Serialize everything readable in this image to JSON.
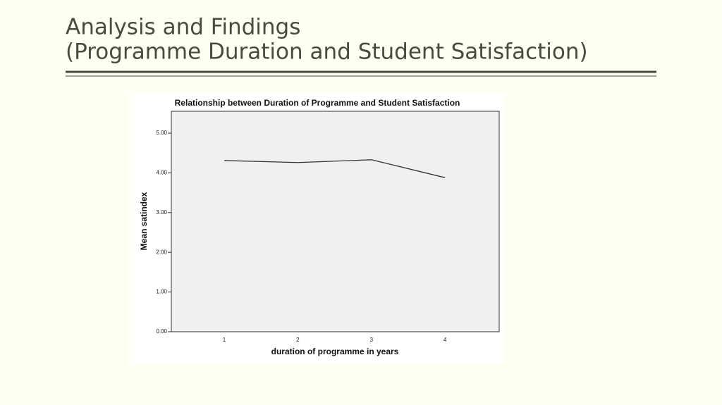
{
  "slide": {
    "title_lines": [
      "Analysis and Findings",
      "(Programme Duration and Student Satisfaction)"
    ]
  },
  "chart_data": {
    "type": "line",
    "title": "Relationship between Duration of Programme and Student Satisfaction",
    "x_label": "duration of programme in years",
    "y_label": "Mean satindex",
    "categories": [
      "1",
      "2",
      "3",
      "4"
    ],
    "values": [
      4.31,
      4.26,
      4.33,
      3.88
    ],
    "color": "#333333",
    "ylim": [
      0,
      5.55
    ],
    "yticks": [
      {
        "value": 0,
        "label": "0.00"
      },
      {
        "value": 1,
        "label": "1.00"
      },
      {
        "value": 2,
        "label": "2.00"
      },
      {
        "value": 3,
        "label": "3.00"
      },
      {
        "value": 4,
        "label": "4.00"
      },
      {
        "value": 5,
        "label": "5.00"
      }
    ]
  }
}
